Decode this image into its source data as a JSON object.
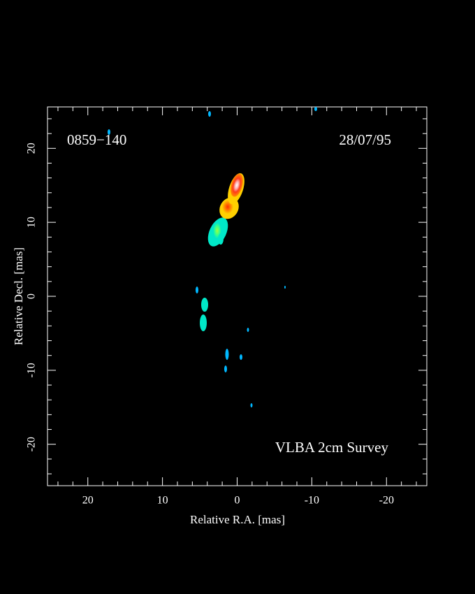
{
  "chart_data": {
    "type": "image",
    "annotations": [
      "0859−140",
      "28/07/95",
      "VLBA 2cm Survey"
    ],
    "xlabel": "Relative R.A. [mas]",
    "ylabel": "Relative Decl. [mas]",
    "xlim": [
      25.4,
      -25.4
    ],
    "ylim": [
      -25.6,
      25.6
    ],
    "xticks": [
      20,
      10,
      0,
      -10,
      -20
    ],
    "yticks": [
      -20,
      -10,
      0,
      10,
      20
    ],
    "xminorticks": [
      24,
      22,
      18,
      16,
      14,
      12,
      8,
      6,
      4,
      2,
      -2,
      -4,
      -6,
      -8,
      -12,
      -14,
      -16,
      -18,
      -22,
      -24
    ],
    "yminorticks": [
      -24,
      -22,
      -18,
      -16,
      -14,
      -12,
      -8,
      -6,
      -4,
      -2,
      2,
      4,
      6,
      8,
      12,
      14,
      16,
      18,
      22,
      24
    ],
    "color": "#ffffff"
  }
}
